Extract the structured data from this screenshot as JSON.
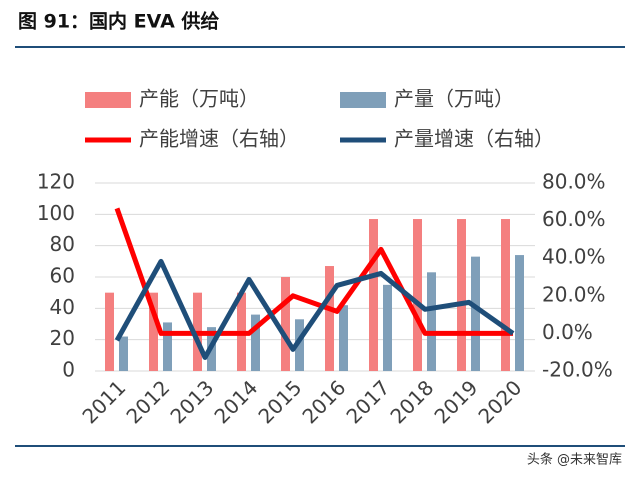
{
  "chart_data": {
    "type": "bar_line",
    "title": "图 91：国内 EVA 供给",
    "watermark": "头条 @未来智库",
    "categories": [
      "2011",
      "2012",
      "2013",
      "2014",
      "2015",
      "2016",
      "2017",
      "2018",
      "2019",
      "2020"
    ],
    "series": [
      {
        "name": "产能（万吨）",
        "type": "bar",
        "color": "#f47f7f",
        "values": [
          50,
          50,
          50,
          50,
          60,
          67,
          97,
          97,
          97,
          97
        ]
      },
      {
        "name": "产量（万吨）",
        "type": "bar",
        "color": "#7f9fb9",
        "values": [
          22,
          31,
          28,
          36,
          33,
          42,
          55,
          63,
          73,
          74
        ]
      },
      {
        "name": "产能增速（右轴）",
        "type": "line",
        "axis": "y2",
        "color": "#ff0000",
        "values": [
          66.5,
          0,
          0,
          0,
          20,
          11.7,
          44.7,
          0,
          0,
          0
        ]
      },
      {
        "name": "产量增速（右轴）",
        "type": "line",
        "axis": "y2",
        "color": "#1f4e79",
        "values": [
          -3.7,
          38.3,
          -12.8,
          28.7,
          -8.5,
          25.5,
          31.9,
          12.8,
          16.5,
          0
        ]
      }
    ],
    "ylim": [
      0,
      120
    ],
    "yticks": [
      0,
      20,
      40,
      60,
      80,
      100,
      120
    ],
    "y2lim": [
      -20,
      80
    ],
    "y2ticks": [
      {
        "value": -20,
        "label": "-20.0%"
      },
      {
        "value": 0,
        "label": "0.0%"
      },
      {
        "value": 20,
        "label": "20.0%"
      },
      {
        "value": 40,
        "label": "40.0%"
      },
      {
        "value": 60,
        "label": "60.0%"
      },
      {
        "value": 80,
        "label": "80.0%"
      }
    ],
    "grid": true
  }
}
